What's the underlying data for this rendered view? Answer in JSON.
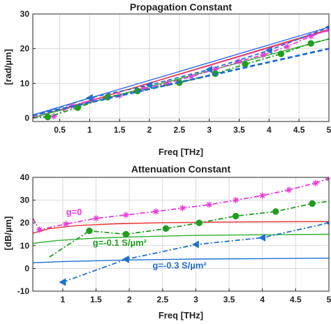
{
  "chart_data": [
    {
      "type": "line",
      "title": "Propagation Constant",
      "xlabel": "Freq [THz]",
      "ylabel": "[rad/µm]",
      "xlim": [
        0.05,
        5
      ],
      "ylim": [
        -1,
        30
      ],
      "xticks": [
        0.5,
        1,
        1.5,
        2,
        2.5,
        3,
        3.5,
        4,
        4.5,
        5
      ],
      "xtick_labels": [
        "0.5",
        "1",
        "1.5",
        "2",
        "2.5",
        "3",
        "3.5",
        "4",
        "4.5",
        "5"
      ],
      "yticks": [
        0,
        10,
        20,
        30
      ],
      "ytick_labels": [
        "0",
        "10",
        "20",
        "30"
      ],
      "grid": true,
      "series": [
        {
          "color": "#3366ff",
          "style": "solid",
          "marker": "none",
          "x": [
            0.05,
            5
          ],
          "y": [
            0.9,
            26.2
          ]
        },
        {
          "color": "#e73bd8",
          "style": "solid",
          "marker": "none",
          "x": [
            0.05,
            5
          ],
          "y": [
            0.1,
            25.3
          ]
        },
        {
          "color": "#ee3333",
          "style": "solid",
          "marker": "none",
          "x": [
            0.05,
            5
          ],
          "y": [
            0.0,
            25.6
          ]
        },
        {
          "color": "#2fb02f",
          "style": "solid",
          "marker": "none",
          "x": [
            0.05,
            5
          ],
          "y": [
            0.1,
            22.8
          ]
        },
        {
          "color": "#e73bd8",
          "style": "dashdot",
          "marker": "asterisk",
          "x": [
            0.05,
            0.4,
            0.7,
            1.05,
            1.5,
            1.9,
            2.3,
            2.7,
            3.1,
            3.5,
            3.9,
            4.3,
            4.7,
            5
          ],
          "y": [
            0.3,
            0.5,
            3.5,
            5.3,
            6.5,
            8.5,
            10.0,
            12.0,
            14.0,
            16.3,
            18.2,
            20.6,
            23.6,
            25.4
          ]
        },
        {
          "color": "#1f9e1f",
          "style": "dashdot",
          "marker": "circle",
          "x": [
            0.05,
            0.3,
            0.8,
            1.3,
            1.8,
            2.5,
            3.1,
            3.6,
            4.2,
            4.7,
            5
          ],
          "y": [
            0.1,
            0.3,
            3.0,
            6.0,
            7.8,
            10.2,
            12.8,
            15.5,
            18.5,
            21.5,
            22.8
          ]
        },
        {
          "color": "#1f6fcf",
          "style": "dashed",
          "marker": "triangle-left",
          "x": [
            0.05,
            1.0,
            2.0,
            3.0,
            4.0,
            5.0
          ],
          "y": [
            0.6,
            5.8,
            9.5,
            14.0,
            19.5,
            26.2
          ]
        },
        {
          "color": "#1f6fcf",
          "style": "thickdash",
          "marker": "none",
          "x": [
            0.05,
            5
          ],
          "y": [
            0.8,
            20.0
          ]
        }
      ]
    },
    {
      "type": "line",
      "title": "Attenuation Constant",
      "xlabel": "Freq [THz]",
      "ylabel": "[dB/µm]",
      "xlim": [
        0.55,
        5
      ],
      "ylim": [
        -10,
        40
      ],
      "xticks": [
        1,
        1.5,
        2,
        2.5,
        3,
        3.5,
        4,
        4.5,
        5
      ],
      "xtick_labels": [
        "1",
        "1.5",
        "2",
        "2.5",
        "3",
        "3.5",
        "4",
        "4.5",
        "5"
      ],
      "yticks": [
        -10,
        0,
        10,
        20,
        30,
        40
      ],
      "ytick_labels": [
        "-10",
        "0",
        "10",
        "20",
        "30",
        "40"
      ],
      "grid": true,
      "annotations": [
        {
          "text": "g=0",
          "color": "#e73bd8",
          "x": 1.05,
          "y": 23.5
        },
        {
          "text": "g=-0.1 S/µm²",
          "color": "#1f9e1f",
          "x": 1.45,
          "y": 10.0
        },
        {
          "text": "g=-0.3 S/µm²",
          "color": "#1f6fcf",
          "x": 2.35,
          "y": 0.0
        }
      ],
      "series": [
        {
          "color": "#ee3333",
          "style": "solid",
          "marker": "none",
          "x": [
            0.55,
            0.8,
            1.2,
            1.8,
            2.5,
            3.2,
            4.0,
            5.0
          ],
          "y": [
            15.5,
            17.5,
            18.8,
            19.6,
            20.1,
            20.3,
            20.5,
            20.6
          ]
        },
        {
          "color": "#2fb02f",
          "style": "solid",
          "marker": "none",
          "x": [
            0.55,
            0.9,
            1.5,
            2.2,
            3.0,
            4.0,
            5.0
          ],
          "y": [
            11.0,
            12.2,
            13.3,
            14.0,
            14.5,
            14.8,
            15.0
          ]
        },
        {
          "color": "#1f6fcf",
          "style": "solid",
          "marker": "none",
          "x": [
            0.55,
            1.0,
            2.0,
            3.0,
            4.0,
            5.0
          ],
          "y": [
            2.5,
            3.0,
            3.7,
            4.1,
            4.3,
            4.5
          ]
        },
        {
          "color": "#e73bd8",
          "style": "dashdot",
          "marker": "asterisk",
          "x": [
            0.55,
            0.65,
            1.05,
            1.5,
            1.95,
            2.4,
            2.8,
            3.2,
            3.6,
            4.0,
            4.4,
            4.8,
            5.0
          ],
          "y": [
            22.0,
            17.0,
            19.5,
            22.0,
            23.5,
            25.0,
            26.5,
            28.0,
            30.0,
            32.0,
            34.5,
            37.5,
            39.5
          ]
        },
        {
          "color": "#1f9e1f",
          "style": "dashdot",
          "marker": "circle",
          "x": [
            0.8,
            1.4,
            1.95,
            2.55,
            3.05,
            3.6,
            4.2,
            4.75,
            5.0
          ],
          "y": [
            5.0,
            16.5,
            15.0,
            17.5,
            20.0,
            23.0,
            25.0,
            28.5,
            29.5
          ]
        },
        {
          "color": "#1f6fcf",
          "style": "dashdot",
          "marker": "triangle-left",
          "x": [
            1.0,
            1.95,
            3.0,
            4.0,
            5.0
          ],
          "y": [
            -6.0,
            4.0,
            10.5,
            13.5,
            20.0
          ]
        }
      ]
    }
  ]
}
